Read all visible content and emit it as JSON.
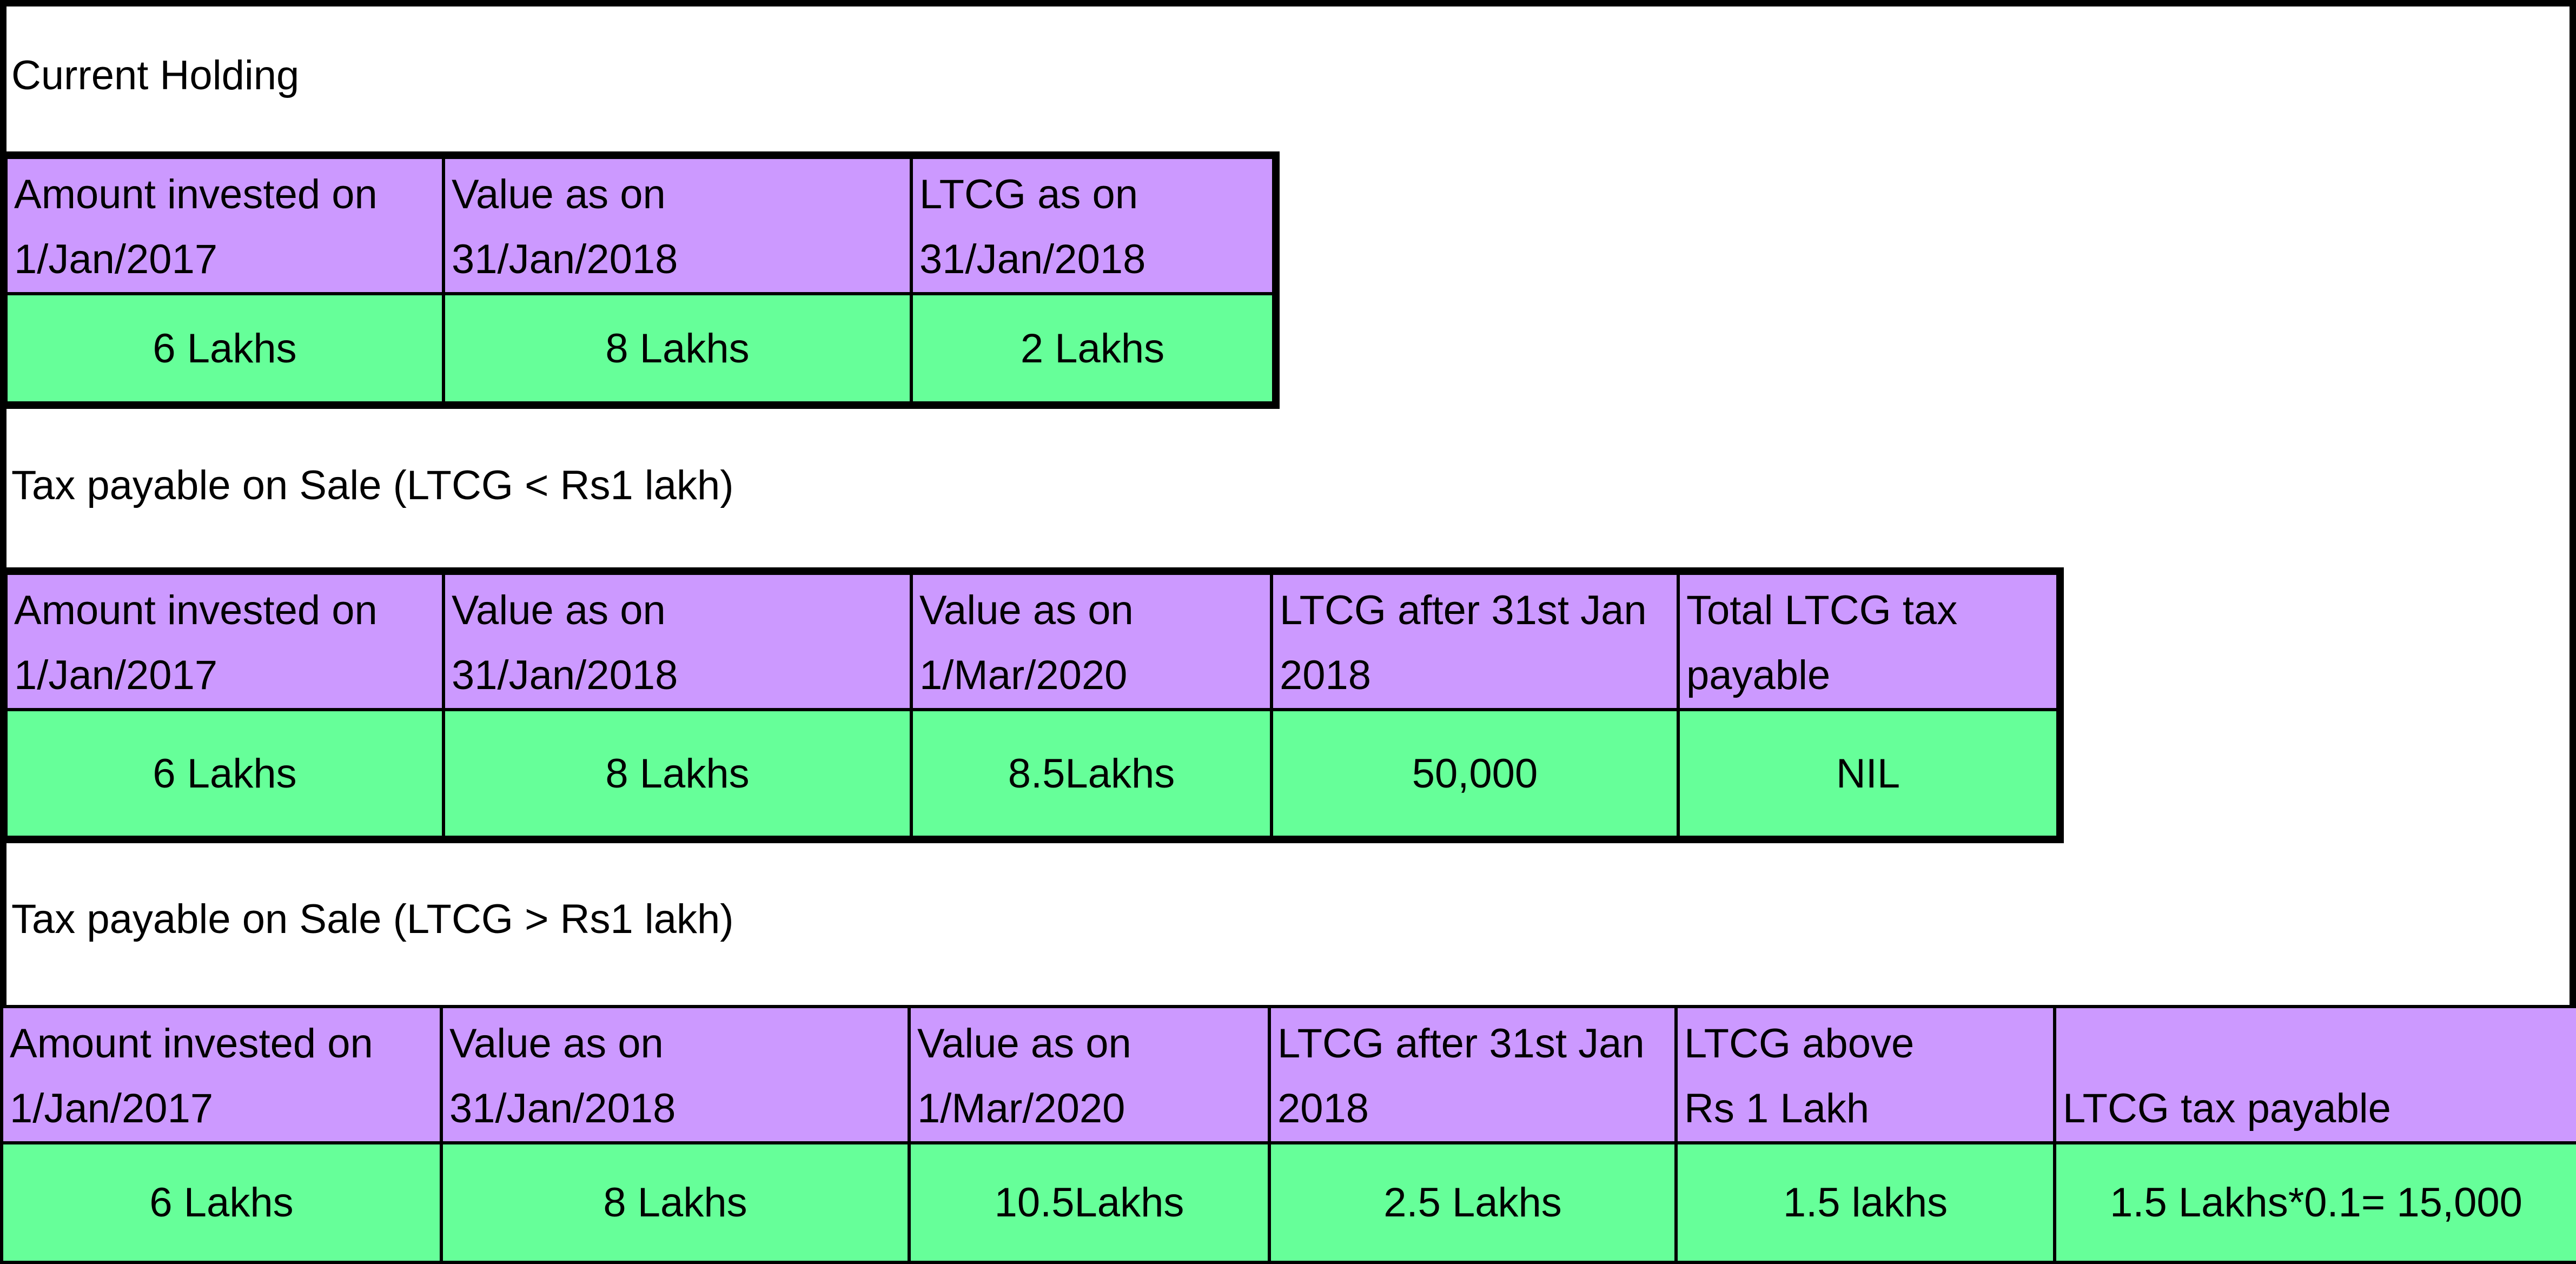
{
  "sections": [
    {
      "title": "Current Holding",
      "headers": [
        [
          "Amount invested on",
          "1/Jan/2017"
        ],
        [
          "Value as on",
          "31/Jan/2018"
        ],
        [
          "LTCG as on",
          "31/Jan/2018"
        ]
      ],
      "values": [
        "6 Lakhs",
        "8 Lakhs",
        "2 Lakhs"
      ]
    },
    {
      "title": "Tax payable on Sale (LTCG < Rs1 lakh)",
      "headers": [
        [
          "Amount invested on",
          "1/Jan/2017"
        ],
        [
          "Value as on",
          "31/Jan/2018"
        ],
        [
          "Value as on",
          "1/Mar/2020"
        ],
        [
          "LTCG after 31st Jan",
          "2018"
        ],
        [
          "Total LTCG tax",
          "payable"
        ]
      ],
      "values": [
        "6 Lakhs",
        "8 Lakhs",
        "8.5Lakhs",
        "50,000",
        "NIL"
      ]
    },
    {
      "title": "Tax payable on Sale (LTCG > Rs1 lakh)",
      "headers": [
        [
          "Amount invested on",
          "1/Jan/2017"
        ],
        [
          "Value as on",
          "31/Jan/2018"
        ],
        [
          "Value as on",
          "1/Mar/2020"
        ],
        [
          "LTCG after 31st Jan",
          "2018"
        ],
        [
          "LTCG above",
          "Rs 1 Lakh"
        ],
        [
          "",
          "LTCG tax payable"
        ]
      ],
      "values": [
        "6 Lakhs",
        "8 Lakhs",
        "10.5Lakhs",
        "2.5 Lakhs",
        "1.5 lakhs",
        "1.5 Lakhs*0.1= 15,000"
      ]
    }
  ],
  "colors": {
    "header_fill": "#cc99ff",
    "value_fill": "#66ff99",
    "border": "#000000",
    "background": "#ffffff"
  }
}
